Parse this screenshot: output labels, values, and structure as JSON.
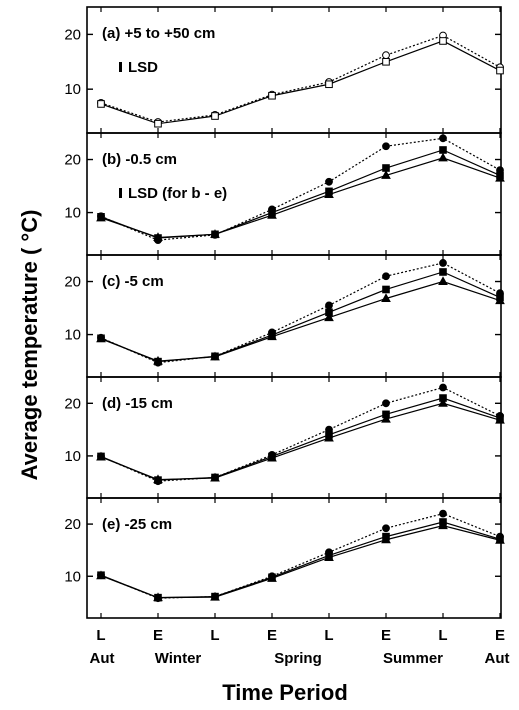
{
  "figure": {
    "ylabel": "Average temperature ( °C)",
    "xlabel": "Time Period",
    "x_ticks": [
      "L",
      "E",
      "L",
      "E",
      "L",
      "E",
      "L",
      "E"
    ],
    "x_groups": [
      "Aut",
      "Winter",
      "Spring",
      "Summer",
      "Aut"
    ]
  },
  "chart_data": [
    {
      "type": "line",
      "panel": "(a)",
      "label": "+5 to +50 cm",
      "lsd_label": "LSD",
      "lsd": 0.8,
      "ylim": [
        2,
        25
      ],
      "yticks": [
        10,
        20
      ],
      "x": [
        "L Aut",
        "E Winter",
        "L Winter",
        "E Spring",
        "L Spring",
        "E Summer",
        "L Summer",
        "E Aut"
      ],
      "series": [
        {
          "style": "dotted-open-circle",
          "values": [
            7.5,
            4.0,
            5.3,
            9.0,
            11.3,
            16.2,
            19.8,
            14.0
          ]
        },
        {
          "style": "solid-open-square",
          "values": [
            7.3,
            3.7,
            5.1,
            8.8,
            10.9,
            15.0,
            18.8,
            13.4
          ]
        }
      ]
    },
    {
      "type": "line",
      "panel": "(b)",
      "label": "-0.5 cm",
      "lsd_label": "LSD (for b - e)",
      "lsd": 0.8,
      "ylim": [
        2,
        25
      ],
      "yticks": [
        10,
        20
      ],
      "x": [
        "L Aut",
        "E Winter",
        "L Winter",
        "E Spring",
        "L Spring",
        "E Summer",
        "L Summer",
        "E Aut"
      ],
      "series": [
        {
          "style": "dotted-filled-circle",
          "values": [
            9.3,
            4.8,
            5.8,
            10.6,
            15.8,
            22.5,
            24.0,
            18.0
          ]
        },
        {
          "style": "solid-filled-square",
          "values": [
            9.2,
            5.2,
            5.9,
            10.0,
            14.0,
            18.4,
            21.8,
            17.0
          ]
        },
        {
          "style": "solid-filled-triangle",
          "values": [
            9.0,
            5.3,
            5.9,
            9.5,
            13.4,
            17.0,
            20.3,
            16.5
          ]
        }
      ]
    },
    {
      "type": "line",
      "panel": "(c)",
      "label": "-5 cm",
      "ylim": [
        2,
        25
      ],
      "yticks": [
        10,
        20
      ],
      "x": [
        "L Aut",
        "E Winter",
        "L Winter",
        "E Spring",
        "L Spring",
        "E Summer",
        "L Summer",
        "E Aut"
      ],
      "series": [
        {
          "style": "dotted-filled-circle",
          "values": [
            9.4,
            4.7,
            5.9,
            10.4,
            15.5,
            21.0,
            23.5,
            17.8
          ]
        },
        {
          "style": "solid-filled-square",
          "values": [
            9.3,
            4.9,
            5.9,
            9.9,
            14.2,
            18.5,
            21.8,
            17.0
          ]
        },
        {
          "style": "solid-filled-triangle",
          "values": [
            9.2,
            5.0,
            5.8,
            9.6,
            13.2,
            16.8,
            20.0,
            16.4
          ]
        }
      ]
    },
    {
      "type": "line",
      "panel": "(d)",
      "label": "-15 cm",
      "ylim": [
        2,
        25
      ],
      "yticks": [
        10,
        20
      ],
      "x": [
        "L Aut",
        "E Winter",
        "L Winter",
        "E Spring",
        "L Spring",
        "E Summer",
        "L Summer",
        "E Aut"
      ],
      "series": [
        {
          "style": "dotted-filled-circle",
          "values": [
            9.9,
            5.2,
            5.9,
            10.2,
            15.0,
            20.0,
            23.0,
            17.6
          ]
        },
        {
          "style": "solid-filled-square",
          "values": [
            9.9,
            5.4,
            5.9,
            9.9,
            14.0,
            17.9,
            21.0,
            17.2
          ]
        },
        {
          "style": "solid-filled-triangle",
          "values": [
            9.8,
            5.5,
            5.8,
            9.6,
            13.4,
            17.0,
            20.0,
            16.8
          ]
        }
      ]
    },
    {
      "type": "line",
      "panel": "(e)",
      "label": "-25 cm",
      "ylim": [
        2,
        25
      ],
      "yticks": [
        10,
        20
      ],
      "x": [
        "L Aut",
        "E Winter",
        "L Winter",
        "E Spring",
        "L Spring",
        "E Summer",
        "L Summer",
        "E Aut"
      ],
      "series": [
        {
          "style": "dotted-filled-circle",
          "values": [
            10.2,
            5.8,
            6.1,
            10.0,
            14.6,
            19.2,
            22.0,
            17.6
          ]
        },
        {
          "style": "solid-filled-square",
          "values": [
            10.2,
            5.9,
            6.1,
            9.8,
            14.0,
            17.6,
            20.4,
            17.1
          ]
        },
        {
          "style": "solid-filled-triangle",
          "values": [
            10.1,
            5.9,
            6.0,
            9.6,
            13.6,
            17.0,
            19.7,
            16.9
          ]
        }
      ]
    }
  ]
}
